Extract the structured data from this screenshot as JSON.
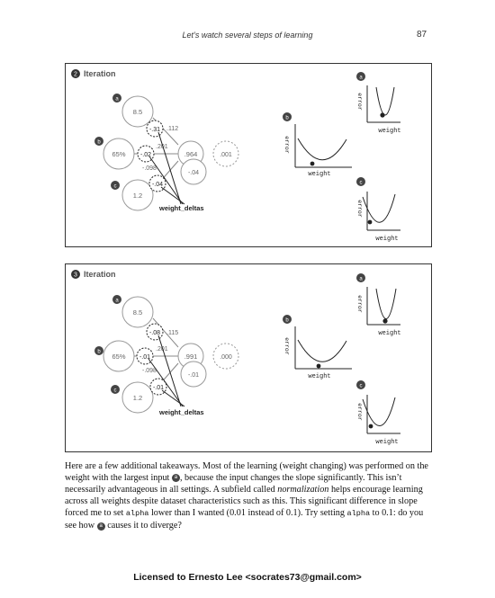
{
  "header": {
    "title": "Let’s watch several steps of learning",
    "page_number": "87"
  },
  "panels": [
    {
      "step_badge": "2",
      "title": "Iteration",
      "inputs": [
        "8.5",
        "65%",
        "1.2"
      ],
      "input_badges": [
        "a",
        "b",
        "c"
      ],
      "deltas": [
        "-.31",
        "-.02",
        "-.04"
      ],
      "weights": [
        ".112",
        ".201",
        "-.098"
      ],
      "prediction": ".964",
      "error": ".001",
      "delta_out": "-.04",
      "weight_deltas_label": "weight_deltas",
      "graph_badges": [
        "a",
        "b",
        "c"
      ],
      "axis_y": "error",
      "axis_x": "weight"
    },
    {
      "step_badge": "3",
      "title": "Iteration",
      "inputs": [
        "8.5",
        "65%",
        "1.2"
      ],
      "input_badges": [
        "a",
        "b",
        "c"
      ],
      "deltas": [
        "-.08",
        "-.01",
        "-.01"
      ],
      "weights": [
        ".115",
        ".201",
        "-.098"
      ],
      "prediction": ".991",
      "error": ".000",
      "delta_out": "-.01",
      "weight_deltas_label": "weight_deltas",
      "graph_badges": [
        "a",
        "b",
        "c"
      ],
      "axis_y": "error",
      "axis_x": "weight"
    }
  ],
  "body": {
    "p1": "Here are a few additional takeaways. Most of the learning (weight changing) was performed on the weight with the largest input",
    "badge_a": "a",
    "p2": ", because the input changes the slope significantly. This isn’t necessarily advantageous in all settings. A subfield called",
    "term": "normalization",
    "p3": "helps encourage learning across all weights despite dataset characteristics such as this. This significant difference in slope forced me to set",
    "code1": "alpha",
    "p4": "lower than I wanted (0.01 instead of 0.1). Try setting",
    "code2": "alpha",
    "p5": "to 0.1: do you see how",
    "p6": "causes it to diverge?"
  },
  "footer": "Licensed to Ernesto Lee <socrates73@gmail.com>"
}
